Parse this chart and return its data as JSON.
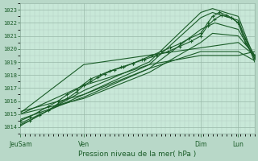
{
  "xlabel": "Pression niveau de la mer( hPa )",
  "bg_color": "#b8d8c8",
  "plot_bg_color": "#c8e8d8",
  "grid_major_color": "#98b8a8",
  "grid_minor_color": "#b0ccc0",
  "line_color": "#1a5c28",
  "ylim": [
    1013.5,
    1023.5
  ],
  "yticks": [
    1014,
    1015,
    1016,
    1017,
    1018,
    1019,
    1020,
    1021,
    1022,
    1023
  ],
  "xtick_labels": [
    "JeuSam",
    "Ven",
    "Dim",
    "Lun"
  ],
  "xtick_pos": [
    0.0,
    0.27,
    0.77,
    0.93
  ],
  "xlim": [
    0.0,
    1.0
  ],
  "series": [
    {
      "x": [
        0.0,
        0.27,
        0.55,
        0.77,
        0.82,
        0.93,
        1.0
      ],
      "y": [
        1014.1,
        1016.8,
        1019.0,
        1022.8,
        1023.1,
        1022.5,
        1019.2
      ]
    },
    {
      "x": [
        0.0,
        0.27,
        0.55,
        0.77,
        0.82,
        0.93,
        1.0
      ],
      "y": [
        1014.3,
        1016.5,
        1018.8,
        1022.4,
        1022.8,
        1022.2,
        1019.0
      ]
    },
    {
      "x": [
        0.0,
        0.27,
        0.55,
        0.77,
        0.83,
        0.93,
        1.0
      ],
      "y": [
        1014.6,
        1016.3,
        1018.5,
        1021.5,
        1022.0,
        1021.5,
        1019.3
      ]
    },
    {
      "x": [
        0.0,
        0.27,
        0.55,
        0.77,
        0.82,
        0.93,
        1.0
      ],
      "y": [
        1015.0,
        1016.2,
        1018.2,
        1020.5,
        1021.2,
        1021.0,
        1019.5
      ]
    },
    {
      "x": [
        0.0,
        0.27,
        0.55,
        0.77,
        0.93,
        1.0
      ],
      "y": [
        1015.2,
        1016.5,
        1018.5,
        1019.8,
        1019.8,
        1019.1
      ]
    },
    {
      "x": [
        0.0,
        0.27,
        0.45,
        0.55,
        0.77,
        0.93,
        1.0
      ],
      "y": [
        1015.0,
        1017.2,
        1018.2,
        1018.8,
        1019.5,
        1019.5,
        1019.8
      ]
    },
    {
      "x": [
        0.0,
        0.27,
        0.93,
        1.0
      ],
      "y": [
        1015.1,
        1018.8,
        1020.5,
        1019.5
      ]
    }
  ],
  "noisy_series": [
    {
      "x": [
        0.0,
        0.04,
        0.08,
        0.12,
        0.16,
        0.2,
        0.24,
        0.27,
        0.3,
        0.33,
        0.36,
        0.4,
        0.44,
        0.48,
        0.52,
        0.56,
        0.6,
        0.64,
        0.68,
        0.72,
        0.77,
        0.8,
        0.82,
        0.85,
        0.88,
        0.9,
        0.93,
        0.96,
        1.0
      ],
      "y": [
        1014.2,
        1014.5,
        1014.9,
        1015.3,
        1015.8,
        1016.2,
        1016.7,
        1017.2,
        1017.5,
        1017.8,
        1018.1,
        1018.4,
        1018.6,
        1018.9,
        1019.2,
        1019.5,
        1019.8,
        1020.1,
        1020.4,
        1020.8,
        1021.2,
        1022.0,
        1022.5,
        1022.8,
        1022.6,
        1022.4,
        1022.0,
        1020.5,
        1019.3
      ]
    },
    {
      "x": [
        0.0,
        0.04,
        0.08,
        0.12,
        0.16,
        0.2,
        0.24,
        0.27,
        0.3,
        0.34,
        0.38,
        0.43,
        0.48,
        0.53,
        0.58,
        0.63,
        0.68,
        0.73,
        0.77,
        0.8,
        0.83,
        0.86,
        0.9,
        0.93,
        0.96,
        1.0
      ],
      "y": [
        1014.5,
        1014.8,
        1015.2,
        1015.6,
        1016.0,
        1016.5,
        1016.9,
        1017.3,
        1017.7,
        1018.0,
        1018.3,
        1018.6,
        1018.9,
        1019.2,
        1019.5,
        1019.8,
        1020.2,
        1020.6,
        1021.0,
        1021.8,
        1022.3,
        1022.6,
        1022.4,
        1022.0,
        1020.8,
        1019.5
      ]
    }
  ]
}
